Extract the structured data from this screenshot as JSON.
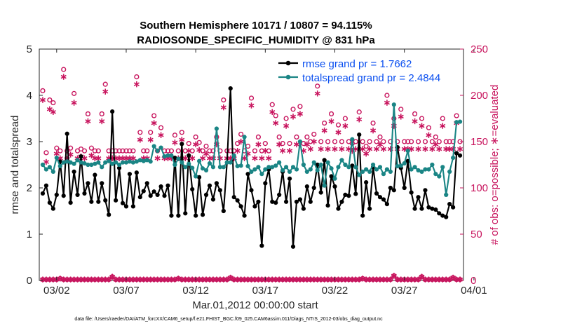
{
  "chart_data": {
    "type": "line",
    "title": "Southern Hemisphere 10171 / 10807 = 94.115%",
    "subtitle": "RADIOSONDE_SPECIFIC_HUMIDITY @ 831 hPa",
    "xlabel": "Mar.01,2012 00:00:00 start",
    "ylabel": "rmse and totalspread",
    "y2label": "# of obs: o=possible; ∗=evaluated",
    "footer": "data file: /Users/raeder/DAI/ATM_forcXX/CAM6_setup/f.e21.FHIST_BGC.f09_025.CAM6assim.011/Diags_NTrS_2012-03/obs_diag_output.nc",
    "xlim": [
      0.75,
      31.25
    ],
    "ylim": [
      0,
      5
    ],
    "y2lim": [
      0,
      250
    ],
    "x_ticks": [
      2,
      7,
      12,
      17,
      22,
      27,
      32
    ],
    "x_tick_labels": [
      "03/02",
      "03/07",
      "03/12",
      "03/17",
      "03/22",
      "03/27",
      "04/01"
    ],
    "y_ticks": [
      0,
      1,
      2,
      3,
      4,
      5
    ],
    "y2_ticks": [
      0,
      50,
      100,
      150,
      200,
      250
    ],
    "x": [
      1.0,
      1.25,
      1.5,
      1.75,
      2.0,
      2.25,
      2.5,
      2.75,
      3.0,
      3.25,
      3.5,
      3.75,
      4.0,
      4.25,
      4.5,
      4.75,
      5.0,
      5.25,
      5.5,
      5.75,
      6.0,
      6.25,
      6.5,
      6.75,
      7.0,
      7.25,
      7.5,
      7.75,
      8.0,
      8.25,
      8.5,
      8.75,
      9.0,
      9.25,
      9.5,
      9.75,
      10.0,
      10.25,
      10.5,
      10.75,
      11.0,
      11.25,
      11.5,
      11.75,
      12.0,
      12.25,
      12.5,
      12.75,
      13.0,
      13.25,
      13.5,
      13.75,
      14.0,
      14.25,
      14.5,
      14.75,
      15.0,
      15.25,
      15.5,
      15.75,
      16.0,
      16.25,
      16.5,
      16.75,
      17.0,
      17.25,
      17.5,
      17.75,
      18.0,
      18.25,
      18.5,
      18.75,
      19.0,
      19.25,
      19.5,
      19.75,
      20.0,
      20.25,
      20.5,
      20.75,
      21.0,
      21.25,
      21.5,
      21.75,
      22.0,
      22.25,
      22.5,
      22.75,
      23.0,
      23.25,
      23.5,
      23.75,
      24.0,
      24.25,
      24.5,
      24.75,
      25.0,
      25.25,
      25.5,
      25.75,
      26.0,
      26.25,
      26.5,
      26.75,
      27.0,
      27.25,
      27.5,
      27.75,
      28.0,
      28.25,
      28.5,
      28.75,
      29.0,
      29.25,
      29.5,
      29.75,
      30.0,
      30.25,
      30.5,
      30.75,
      31.0
    ],
    "series": [
      {
        "name": "rmse grand pr = 1.7662",
        "color": "#000000",
        "marker": "filled-circle",
        "values": [
          1.88,
          2.05,
          1.68,
          1.55,
          1.85,
          2.57,
          1.83,
          3.17,
          1.68,
          2.35,
          1.85,
          2.68,
          1.88,
          2.1,
          1.7,
          2.28,
          1.7,
          2.1,
          1.73,
          1.42,
          3.65,
          1.73,
          2.43,
          1.67,
          1.6,
          2.3,
          1.6,
          2.33,
          1.8,
          1.93,
          2.1,
          1.83,
          1.92,
          1.85,
          2.03,
          1.83,
          2.05,
          1.4,
          2.65,
          1.4,
          2.95,
          1.45,
          2.7,
          1.97,
          1.4,
          2.23,
          1.42,
          1.85,
          2.05,
          1.75,
          2.1,
          1.95,
          1.5,
          2.55,
          4.15,
          1.8,
          1.73,
          1.6,
          1.4,
          2.3,
          1.95,
          1.6,
          1.7,
          0.75,
          2.1,
          2.4,
          1.7,
          1.68,
          1.85,
          2.35,
          1.7,
          2.2,
          0.73,
          1.7,
          1.75,
          1.55,
          2.03,
          1.7,
          2.0,
          2.5,
          1.9,
          2.6,
          1.62,
          2.25,
          2.03,
          1.55,
          1.7,
          1.85,
          1.83,
          2.48,
          1.87,
          3.15,
          1.4,
          2.12,
          1.55,
          2.45,
          1.88,
          1.8,
          1.75,
          1.65,
          2.0,
          1.95,
          2.88,
          2.43,
          2.0,
          2.58,
          1.9,
          1.55,
          1.8,
          1.55,
          1.95,
          1.58,
          1.55,
          1.53,
          1.45,
          1.4,
          1.37,
          1.65,
          1.58,
          2.75,
          2.7
        ]
      },
      {
        "name": "totalspread grand pr = 2.4844",
        "color": "#1a8585",
        "marker": "filled-circle",
        "values": [
          2.5,
          2.4,
          2.45,
          2.35,
          2.65,
          2.47,
          2.55,
          2.57,
          2.55,
          2.52,
          2.6,
          2.55,
          2.53,
          2.5,
          2.5,
          2.52,
          2.55,
          2.45,
          2.55,
          2.58,
          2.52,
          2.55,
          2.5,
          2.55,
          2.55,
          2.57,
          2.55,
          2.57,
          2.6,
          2.58,
          2.6,
          2.57,
          2.9,
          2.8,
          2.87,
          2.68,
          2.7,
          2.7,
          2.5,
          2.63,
          2.55,
          2.45,
          2.52,
          2.43,
          2.25,
          2.58,
          2.42,
          2.38,
          2.53,
          2.45,
          3.28,
          2.45,
          2.45,
          2.55,
          2.55,
          2.7,
          2.47,
          2.48,
          3.1,
          2.47,
          2.35,
          2.4,
          2.45,
          2.3,
          2.4,
          2.45,
          2.45,
          2.48,
          2.55,
          2.38,
          2.45,
          2.35,
          2.45,
          2.4,
          3.0,
          2.5,
          2.35,
          2.4,
          2.55,
          2.38,
          2.5,
          2.05,
          2.55,
          2.42,
          2.2,
          2.45,
          2.6,
          2.5,
          2.45,
          3.05,
          2.45,
          2.28,
          2.35,
          2.4,
          2.35,
          2.5,
          2.4,
          2.45,
          2.3,
          2.4,
          2.35,
          3.8,
          2.47,
          2.48,
          2.53,
          2.8,
          2.4,
          2.45,
          2.38,
          2.35,
          2.4,
          2.4,
          2.5,
          2.3,
          2.25,
          2.45,
          1.85,
          2.35,
          2.65,
          3.42,
          3.43
        ]
      },
      {
        "name": "# obs possible",
        "color": "#c8155e",
        "marker": "open-circle",
        "axis": "right",
        "values": [
          205,
          138,
          195,
          192,
          143,
          140,
          228,
          140,
          143,
          202,
          140,
          142,
          140,
          180,
          143,
          140,
          140,
          180,
          212,
          140,
          140,
          140,
          140,
          140,
          140,
          140,
          140,
          220,
          160,
          140,
          140,
          160,
          178,
          140,
          165,
          140,
          140,
          140,
          157,
          140,
          160,
          140,
          148,
          140,
          155,
          149,
          140,
          145,
          140,
          140,
          155,
          140,
          195,
          140,
          140,
          140,
          148,
          158,
          140,
          145,
          197,
          140,
          155,
          140,
          148,
          140,
          190,
          178,
          155,
          148,
          175,
          148,
          185,
          155,
          188,
          148,
          155,
          150,
          158,
          210,
          150,
          170,
          150,
          180,
          150,
          168,
          150,
          175,
          150,
          148,
          150,
          182,
          150,
          145,
          150,
          170,
          150,
          155,
          150,
          200,
          150,
          175,
          150,
          185,
          150,
          150,
          150,
          180,
          150,
          175,
          150,
          165,
          150,
          155,
          150,
          175,
          150,
          150,
          150,
          178,
          150
        ]
      },
      {
        "name": "# obs evaluated",
        "color": "#c8155e",
        "marker": "asterisk",
        "axis": "right",
        "values": [
          195,
          128,
          185,
          182,
          137,
          132,
          220,
          131,
          136,
          192,
          132,
          134,
          132,
          172,
          135,
          132,
          132,
          172,
          204,
          132,
          132,
          132,
          132,
          132,
          132,
          132,
          132,
          212,
          152,
          132,
          132,
          152,
          170,
          132,
          157,
          132,
          132,
          132,
          149,
          132,
          152,
          132,
          140,
          132,
          147,
          141,
          132,
          137,
          132,
          132,
          147,
          132,
          187,
          132,
          132,
          132,
          140,
          150,
          132,
          137,
          189,
          132,
          147,
          132,
          140,
          132,
          182,
          170,
          147,
          140,
          167,
          140,
          177,
          147,
          180,
          140,
          147,
          142,
          150,
          202,
          142,
          162,
          142,
          172,
          142,
          160,
          142,
          167,
          142,
          140,
          142,
          174,
          142,
          137,
          142,
          162,
          142,
          147,
          142,
          192,
          142,
          167,
          142,
          177,
          142,
          142,
          142,
          172,
          142,
          167,
          142,
          157,
          142,
          147,
          142,
          167,
          142,
          142,
          142,
          170,
          142
        ]
      },
      {
        "name": "# obs possible (bottom row)",
        "color": "#c8155e",
        "marker": "open-circle",
        "axis": "right",
        "values": [
          1,
          1,
          1,
          1,
          1,
          2,
          1,
          1,
          1,
          1,
          1,
          1,
          1,
          1,
          1,
          1,
          1,
          1,
          1,
          1,
          4,
          1,
          1,
          1,
          1,
          1,
          1,
          1,
          1,
          1,
          1,
          1,
          1,
          1,
          1,
          1,
          1,
          1,
          1,
          2,
          1,
          1,
          1,
          1,
          1,
          1,
          1,
          1,
          1,
          1,
          1,
          1,
          1,
          1,
          3,
          1,
          1,
          1,
          1,
          1,
          1,
          1,
          1,
          1,
          1,
          1,
          1,
          1,
          1,
          1,
          1,
          1,
          1,
          1,
          1,
          1,
          1,
          1,
          1,
          1,
          1,
          1,
          1,
          1,
          1,
          1,
          1,
          1,
          1,
          1,
          1,
          1,
          2,
          1,
          1,
          1,
          1,
          1,
          1,
          1,
          1,
          5,
          1,
          1,
          1,
          1,
          1,
          1,
          1,
          4,
          1,
          1,
          1,
          1,
          1,
          1,
          1,
          1,
          3,
          1,
          1
        ]
      },
      {
        "name": "# obs evaluated (bottom row)",
        "color": "#c8155e",
        "marker": "asterisk",
        "axis": "right",
        "values": [
          1,
          1,
          1,
          1,
          1,
          2,
          1,
          1,
          1,
          1,
          1,
          1,
          1,
          1,
          1,
          1,
          1,
          1,
          1,
          1,
          4,
          1,
          1,
          1,
          1,
          1,
          1,
          1,
          1,
          1,
          1,
          1,
          1,
          1,
          1,
          1,
          1,
          1,
          1,
          2,
          1,
          1,
          1,
          1,
          1,
          1,
          1,
          1,
          1,
          1,
          1,
          1,
          1,
          1,
          3,
          1,
          1,
          1,
          1,
          1,
          1,
          1,
          1,
          1,
          1,
          1,
          1,
          1,
          1,
          1,
          1,
          1,
          1,
          1,
          1,
          1,
          1,
          1,
          1,
          1,
          1,
          1,
          1,
          1,
          1,
          1,
          1,
          1,
          1,
          1,
          1,
          1,
          2,
          1,
          1,
          1,
          1,
          1,
          1,
          1,
          1,
          5,
          1,
          1,
          1,
          1,
          1,
          1,
          1,
          4,
          1,
          1,
          1,
          1,
          1,
          1,
          1,
          1,
          3,
          1,
          1
        ]
      }
    ],
    "legend": {
      "position": "top-right",
      "entries": [
        "rmse grand pr = 1.7662",
        "totalspread grand pr = 2.4844"
      ]
    }
  }
}
